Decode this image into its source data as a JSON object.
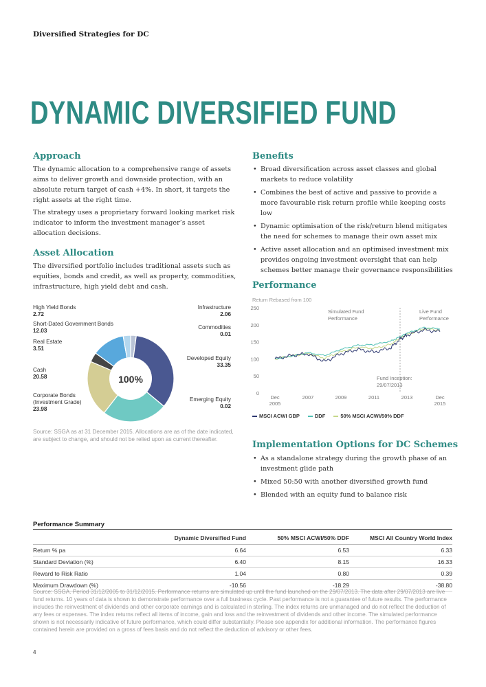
{
  "running_head": "Diversified Strategies for DC",
  "title": "DYNAMIC DIVERSIFIED FUND",
  "approach": {
    "heading": "Approach",
    "paragraphs": [
      "The dynamic allocation to a comprehensive range of assets aims to deliver growth and downside protection, with an absolute return target of cash +4%. In short, it targets the right assets at the right time.",
      "The strategy uses a proprietary forward looking market risk indicator to inform the investment manager’s asset allocation decisions."
    ]
  },
  "asset_allocation": {
    "heading": "Asset Allocation",
    "paragraph": "The diversified portfolio includes traditional assets such as equities, bonds and credit, as well as property, commodities, infrastructure, high yield debt and cash.",
    "center_label": "100%",
    "source": "Source: SSGA as at 31 December 2015. Allocations are as of the date indicated, are subject to change, and should not be relied upon as current thereafter.",
    "labels": {
      "high_yield": {
        "name": "High Yield Bonds",
        "value": "2.72"
      },
      "short_dated": {
        "name": "Short-Dated Government Bonds",
        "value": "12.03"
      },
      "real_estate": {
        "name": "Real Estate",
        "value": "3.51"
      },
      "cash": {
        "name": "Cash",
        "value": "20.58"
      },
      "corporate_line1": "Corporate Bonds",
      "corporate_line2": "(Investment Grade)",
      "corporate_value": "23.98",
      "infrastructure": {
        "name": "Infrastructure",
        "value": "2.06"
      },
      "commodities": {
        "name": "Commodities",
        "value": "0.01"
      },
      "developed": {
        "name": "Developed Equity",
        "value": "33.35"
      },
      "emerging": {
        "name": "Emerging Equity",
        "value": "0.02"
      }
    }
  },
  "benefits": {
    "heading": "Benefits",
    "items": [
      "Broad diversification across asset classes and global markets to reduce volatility",
      "Combines the best of active and passive to provide a more favourable risk return profile while keeping costs low",
      "Dynamic optimisation of the risk/return blend mitigates the need for schemes to manage their own asset mix",
      "Active asset allocation and an optimised investment mix provides ongoing investment oversight that can help schemes better manage their governance responsibilities"
    ]
  },
  "performance": {
    "heading": "Performance",
    "subtitle": "Return Rebased from 100",
    "simulated_line1": "Simulated Fund",
    "simulated_line2": "Performance",
    "live_line1": "Live Fund",
    "live_line2": "Performance",
    "inception_line1": "Fund Inception:",
    "inception_line2": "29/07/2013",
    "y_ticks": [
      "250",
      "200",
      "150",
      "100",
      "50",
      "0"
    ],
    "x_ticks": [
      {
        "top": "Dec",
        "bottom": "2005"
      },
      {
        "top": "2007",
        "bottom": ""
      },
      {
        "top": "2009",
        "bottom": ""
      },
      {
        "top": "2011",
        "bottom": ""
      },
      {
        "top": "2013",
        "bottom": ""
      },
      {
        "top": "Dec",
        "bottom": "2015"
      }
    ],
    "legend": [
      "MSCI ACWI GBP",
      "DDF",
      "50% MSCI ACWI/50% DDF"
    ]
  },
  "implementation": {
    "heading": "Implementation Options for DC Schemes",
    "items": [
      "As a standalone strategy during the growth phase of an investment glide path",
      "Mixed 50:50 with another diversified growth fund",
      "Blended with an equity fund to balance risk"
    ]
  },
  "summary": {
    "heading": "Performance Summary",
    "columns": [
      "",
      "Dynamic Diversified Fund",
      "50% MSCI ACWI/50% DDF",
      "MSCI All Country World Index"
    ],
    "rows": [
      [
        "Return % pa",
        "6.64",
        "6.53",
        "6.33"
      ],
      [
        "Standard Deviation (%)",
        "6.40",
        "8.15",
        "16.33"
      ],
      [
        "Reward to Risk Ratio",
        "1.04",
        "0.80",
        "0.39"
      ],
      [
        "Maximum Drawdown (%)",
        "-10.56",
        "-18.29",
        "-38.80"
      ]
    ],
    "footnote": "Source: SSGA. Period 31/12/2005 to 31/12/2015. Performance returns are simulated up until the fund launched on the 29/07/2013. The data after 29/07/2013 are live fund returns. 10 years of data is shown to demonstrate performance over a full business cycle. Past performance is not a guarantee of future results. The performance includes the reinvestment of dividends and other corporate earnings and is calculated in sterling. The index returns are unmanaged and do not reflect the deduction of any fees or expenses. The index returns reflect all items of income, gain and loss and the reinvestment of dividends and other income. The simulated performance shown is not necessarily indicative of future performance, which could differ substantially. Please see appendix for additional information. The performance figures contained herein are provided on a gross of fees basis and do not reflect the deduction of advisory or other fees."
  },
  "page_number": "4",
  "chart_data": [
    {
      "type": "pie",
      "categories": [
        "Infrastructure",
        "Commodities",
        "Developed Equity",
        "Emerging Equity",
        "Corporate Bonds (Investment Grade)",
        "Cash",
        "Real Estate",
        "Short-Dated Government Bonds",
        "High Yield Bonds"
      ],
      "values": [
        2.06,
        0.01,
        33.35,
        0.02,
        23.98,
        20.58,
        3.51,
        12.03,
        2.72
      ],
      "colors": [
        "#b9c3d6",
        "#e8e8e8",
        "#4a5891",
        "#2c4b6e",
        "#6fc9c3",
        "#d4cd94",
        "#454545",
        "#58a8dc",
        "#b4d7ee"
      ]
    },
    {
      "type": "line",
      "title": "Return Rebased from 100",
      "x": [
        "2005-12",
        "2006-12",
        "2007-12",
        "2008-12",
        "2009-12",
        "2010-12",
        "2011-12",
        "2012-12",
        "2013-07",
        "2013-12",
        "2014-12",
        "2015-12"
      ],
      "xlim": [
        "2005-12",
        "2015-12"
      ],
      "ylim": [
        0,
        250
      ],
      "series": [
        {
          "name": "MSCI ACWI GBP",
          "color": "#2c3770",
          "values": [
            100,
            110,
            115,
            92,
            115,
            128,
            120,
            132,
            158,
            170,
            185,
            180
          ]
        },
        {
          "name": "DDF",
          "color": "#4fc0b4",
          "values": [
            100,
            108,
            118,
            110,
            128,
            140,
            142,
            152,
            165,
            175,
            192,
            188
          ]
        },
        {
          "name": "50% MSCI ACWI/50% DDF",
          "color": "#c6d88a",
          "values": [
            100,
            109,
            116,
            102,
            121,
            134,
            131,
            142,
            161,
            172,
            188,
            185
          ]
        }
      ],
      "annotations": [
        "Simulated Fund Performance",
        "Live Fund Performance",
        "Fund Inception: 29/07/2013"
      ]
    }
  ]
}
